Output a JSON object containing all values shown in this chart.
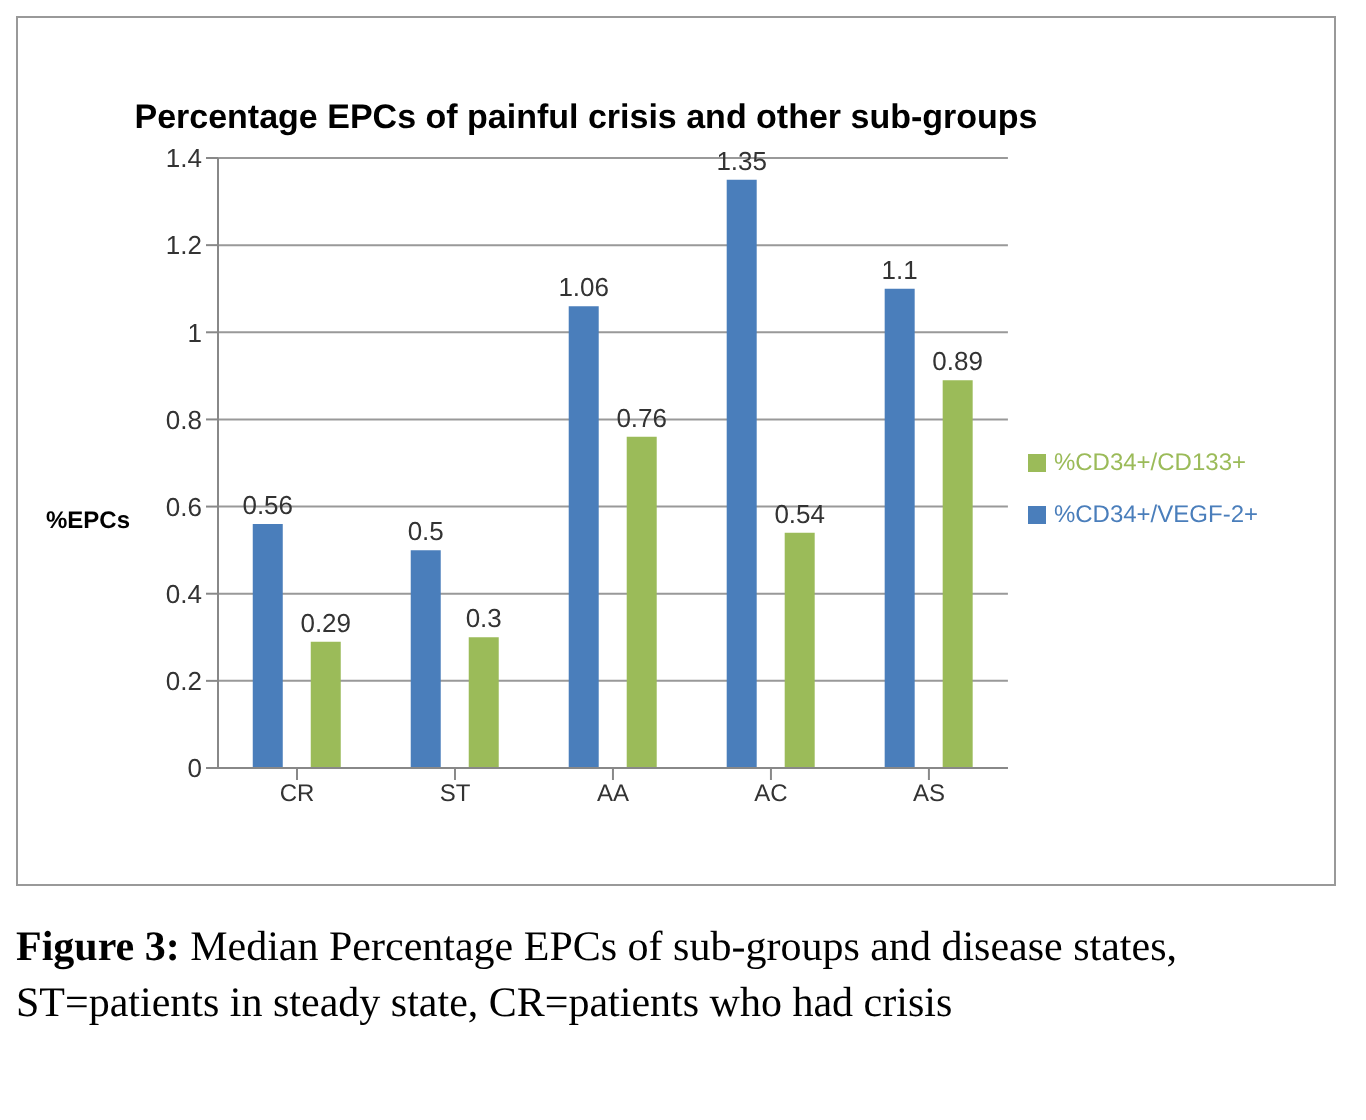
{
  "chart_data": {
    "type": "bar",
    "title": "Percentage EPCs of painful crisis and other sub-groups",
    "ylabel": "%EPCs",
    "categories": [
      "CR",
      "ST",
      "AA",
      "AC",
      "AS"
    ],
    "series": [
      {
        "name": "%CD34+/VEGF-2+",
        "color": "#4a7ebb",
        "values": [
          0.56,
          0.5,
          1.06,
          1.35,
          1.1
        ]
      },
      {
        "name": "%CD34+/CD133+",
        "color": "#9bbb59",
        "values": [
          0.29,
          0.3,
          0.76,
          0.54,
          0.89
        ]
      }
    ],
    "ylim": [
      0,
      1.4
    ],
    "yticks": [
      0,
      0.2,
      0.4,
      0.6,
      0.8,
      1,
      1.2,
      1.4
    ],
    "grid": "y",
    "legend": "right",
    "data_labels": true,
    "annotations": [
      "Figure 3: Median Percentage EPCs of sub-groups and disease states, ST=patients in steady state, CR=patients who had crisis"
    ]
  }
}
